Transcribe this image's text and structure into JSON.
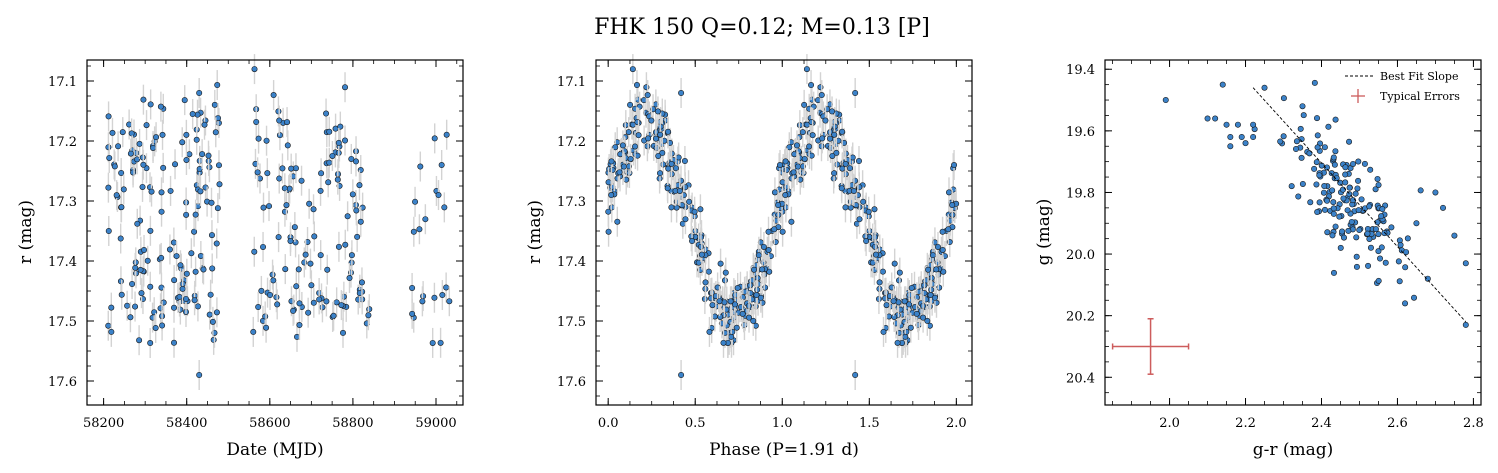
{
  "title": "FHK 150  Q=0.12; M=0.13 [P]",
  "colors": {
    "point_fill": "#3b82c9",
    "point_edge": "#1a1a1a",
    "errorbar": "#d3d3d3",
    "fit_line": "#000000",
    "typical_error": "#cd5c5c"
  },
  "chart_data": [
    {
      "type": "scatter",
      "name": "light-curve",
      "xlabel": "Date (MJD)",
      "ylabel": "r (mag)",
      "xlim": [
        58160,
        59065
      ],
      "ylim": [
        17.64,
        17.065
      ],
      "y_inverted": true,
      "xticks": [
        58200,
        58400,
        58600,
        58800,
        59000
      ],
      "xtick_labels": [
        "58200",
        "58400",
        "58600",
        "58800",
        "59000"
      ],
      "yticks": [
        17.1,
        17.2,
        17.3,
        17.4,
        17.5,
        17.6
      ],
      "ytick_labels": [
        "17.1",
        "17.2",
        "17.3",
        "17.4",
        "17.5",
        "17.6"
      ],
      "period_days": 1.91,
      "t0": 58200,
      "mag_mean": 17.33,
      "mag_amp": 0.165,
      "mag_err": 0.025,
      "segments": [
        [
          58210,
          58480,
          160
        ],
        [
          58560,
          58840,
          130
        ],
        [
          58935,
          59035,
          22
        ]
      ],
      "outliers": [
        [
          58430,
          17.59
        ],
        [
          58430,
          17.12
        ]
      ]
    },
    {
      "type": "scatter",
      "name": "phased-light-curve",
      "xlabel": "Phase (P=1.91 d)",
      "ylabel": "r (mag)",
      "xlim": [
        -0.07,
        2.09
      ],
      "ylim": [
        17.64,
        17.065
      ],
      "y_inverted": true,
      "xticks": [
        0.0,
        0.5,
        1.0,
        1.5,
        2.0
      ],
      "xtick_labels": [
        "0.0",
        "0.5",
        "1.0",
        "1.5",
        "2.0"
      ],
      "yticks": [
        17.1,
        17.2,
        17.3,
        17.4,
        17.5,
        17.6
      ],
      "ytick_labels": [
        "17.1",
        "17.2",
        "17.3",
        "17.4",
        "17.5",
        "17.6"
      ]
    },
    {
      "type": "scatter",
      "name": "color-magnitude",
      "xlabel": "g-r (mag)",
      "ylabel": "g (mag)",
      "xlim": [
        1.83,
        2.82
      ],
      "ylim": [
        20.49,
        19.37
      ],
      "y_inverted": true,
      "xticks": [
        2.0,
        2.2,
        2.4,
        2.6,
        2.8
      ],
      "xtick_labels": [
        "2.0",
        "2.2",
        "2.4",
        "2.6",
        "2.8"
      ],
      "yticks": [
        19.4,
        19.6,
        19.8,
        20.0,
        20.2,
        20.4
      ],
      "ytick_labels": [
        "19.4",
        "19.6",
        "19.8",
        "20.0",
        "20.2",
        "20.4"
      ],
      "best_fit_line": {
        "x": [
          2.22,
          2.78
        ],
        "y": [
          19.46,
          20.22
        ]
      },
      "typical_error": {
        "x": 1.95,
        "y": 20.3,
        "xerr": 0.1,
        "yerr": 0.09
      },
      "cluster": {
        "center_x": 2.47,
        "center_y": 19.82,
        "n": 170
      },
      "extra_points": [
        [
          1.99,
          19.5
        ],
        [
          2.1,
          19.56
        ],
        [
          2.12,
          19.56
        ],
        [
          2.15,
          19.58
        ],
        [
          2.16,
          19.62
        ],
        [
          2.18,
          19.58
        ],
        [
          2.19,
          19.62
        ],
        [
          2.22,
          19.58
        ],
        [
          2.22,
          19.62
        ],
        [
          2.2,
          19.64
        ],
        [
          2.16,
          19.65
        ],
        [
          2.14,
          19.45
        ],
        [
          2.25,
          19.46
        ],
        [
          2.78,
          20.03
        ],
        [
          2.78,
          20.23
        ],
        [
          2.75,
          19.94
        ],
        [
          2.68,
          20.08
        ],
        [
          2.62,
          20.16
        ],
        [
          2.65,
          19.9
        ],
        [
          2.7,
          19.8
        ],
        [
          2.72,
          19.85
        ],
        [
          2.35,
          19.52
        ]
      ],
      "legend": {
        "placement": "top-right",
        "entries": [
          "Best Fit Slope",
          "Typical Errors"
        ]
      }
    }
  ]
}
